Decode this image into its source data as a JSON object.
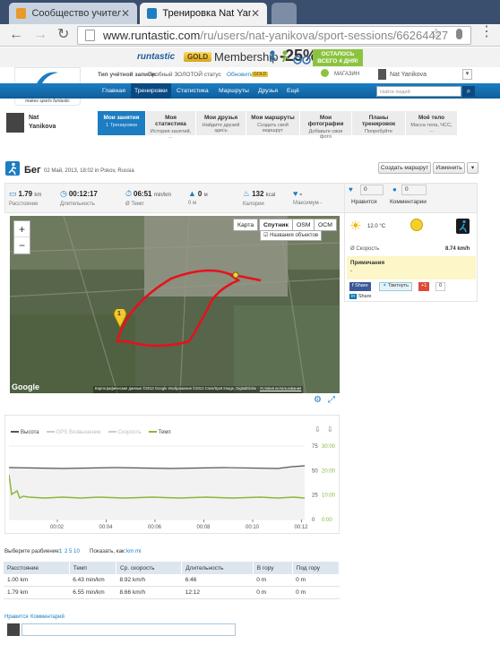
{
  "browser": {
    "tabs": [
      {
        "title": "Сообщество учителей Int",
        "active": false
      },
      {
        "title": "Тренировка Nat Yanikova",
        "active": true
      }
    ],
    "url_domain": "www.runtastic.com",
    "url_path": "/ru/users/nat-yanikova/sport-sessions/66264427"
  },
  "promo": {
    "brand": "runtastic",
    "gold": "GOLD",
    "membership": "Membership",
    "discount": "-25%",
    "remaining_line1": "ОСТАЛОСЬ",
    "remaining_line2": "ВСЕГО 4 ДНЯ!"
  },
  "account": {
    "type_label": "Тип учётной записи:",
    "type_value": "Пробный ЗОЛОТОЙ статус",
    "upgrade_link": "Обновить",
    "gold_badge": "GOLD",
    "shop": "МАГАЗИН",
    "user": "Nat Yanikova",
    "search_placeholder": "Найти людей"
  },
  "logo": {
    "name": "runtastic",
    "tagline": "makes sports funtastic"
  },
  "nav": [
    "Главная",
    "Тренировки",
    "Статистика",
    "Маршруты",
    "Друзья",
    "Ещё"
  ],
  "nav_active": 1,
  "profile": {
    "first": "Nat",
    "last": "Yanikova"
  },
  "subnav": [
    {
      "title": "Мои занятия",
      "sub": "1 Тренировки"
    },
    {
      "title": "Моя статистика",
      "sub": "История занятий, ..."
    },
    {
      "title": "Мои друзья",
      "sub": "Найдите друзей здесь"
    },
    {
      "title": "Мои маршруты",
      "sub": "Создать свой маршрут"
    },
    {
      "title": "Мои фотографии",
      "sub": "Добавьте свои фото"
    },
    {
      "title": "Планы тренировок",
      "sub": "Попробуйте"
    },
    {
      "title": "Моё тело",
      "sub": "Масса тела, ЧСС, ..."
    }
  ],
  "activity": {
    "title": "Бег",
    "meta": "02 Май, 2013, 18:02 in Pskov, Russia",
    "create_route": "Создать маршрут",
    "edit": "Изменить"
  },
  "stats": [
    {
      "icon": "ruler-icon",
      "value": "1.79",
      "unit": "km",
      "label": "Расстояние"
    },
    {
      "icon": "clock-icon",
      "value": "00:12:17",
      "unit": "",
      "label": "Длительность"
    },
    {
      "icon": "pace-icon",
      "value": "06:51",
      "unit": "min/km",
      "label": "Ø Темп"
    },
    {
      "icon": "elevation-icon",
      "value": "0",
      "unit": "м",
      "label": "0 м"
    },
    {
      "icon": "flame-icon",
      "value": "132",
      "unit": "kcal",
      "label": "Калории"
    },
    {
      "icon": "heart-icon",
      "value": "-",
      "unit": "",
      "label": "Максимум -"
    }
  ],
  "map": {
    "tabs": [
      "Карта",
      "Спутник",
      "OSM",
      "OCM"
    ],
    "active_tab": 1,
    "overlay_option": "Названия объектов",
    "copyright": "Картографические данные ©2013 Google Изображения ©2013 Cnes/Spot Image, DigitalGlobe -",
    "terms": "Условия использования",
    "google": "Google",
    "zoom_in": "+",
    "zoom_out": "−",
    "start_marker": "1"
  },
  "side": {
    "likes": "0",
    "likes_label": "Нравится",
    "comments": "0",
    "comments_label": "Комментарии",
    "temperature": "12.0 °C",
    "speed_label": "Ø Скорость",
    "speed_value": "8.74 km/h",
    "notes_title": "Примечания",
    "notes_value": "-",
    "share": [
      "Share",
      "Твитнуть",
      "+1"
    ],
    "plus_count": "0",
    "linkedin_share": "Share"
  },
  "graph": {
    "legend": [
      {
        "name": "Высота",
        "color": "#555555",
        "enabled": true
      },
      {
        "name": "GPS Возвышение",
        "color": "#cccccc",
        "enabled": false
      },
      {
        "name": "Скорость",
        "color": "#cccccc",
        "enabled": false
      },
      {
        "name": "Темп",
        "color": "#8ab83b",
        "enabled": true
      }
    ],
    "x_ticks": [
      "00:02",
      "00:04",
      "00:06",
      "00:08",
      "00:10",
      "00:12"
    ],
    "y_left": [
      "75",
      "50",
      "25",
      "0"
    ],
    "y_right": [
      "30:00",
      "20:00",
      "10:00",
      "0:00"
    ]
  },
  "splits": {
    "choose_label": "Выберите разбиение:",
    "options": [
      "1",
      "2",
      "5",
      "10"
    ],
    "show_label": "Показать, как:",
    "units": [
      "km",
      "mi"
    ],
    "columns": [
      "Расстояние",
      "Темп",
      "Ср. скорость",
      "Длительность",
      "В гору",
      "Под гору"
    ],
    "rows": [
      [
        "1.00 km",
        "6.43 min/km",
        "8.92 km/h",
        "6:46",
        "0 m",
        "0 m"
      ],
      [
        "1.79 km",
        "6.55 min/km",
        "8.66 km/h",
        "12:12",
        "0 m",
        "0 m"
      ]
    ]
  },
  "comments": {
    "like": "Нравится",
    "comment": "Комментарий"
  },
  "colors": {
    "brand_blue": "#1c7dc1",
    "route_red": "#e8101c",
    "pace_green": "#8ab83b"
  }
}
